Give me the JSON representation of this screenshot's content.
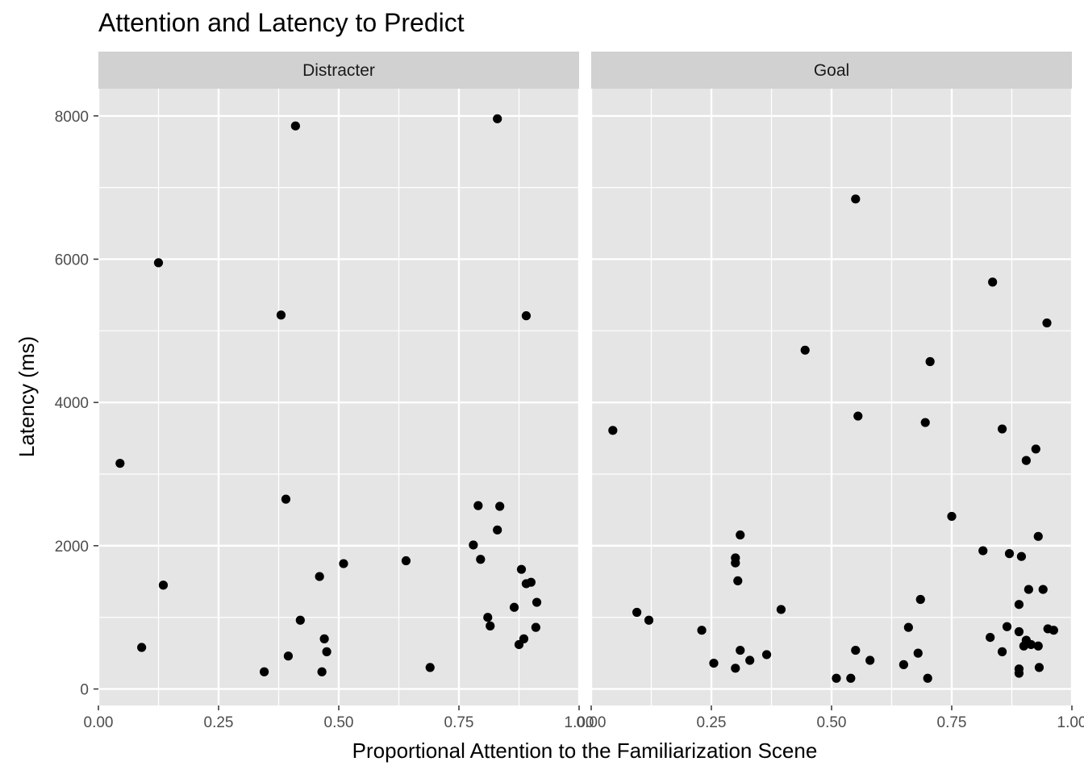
{
  "chart_data": {
    "type": "scatter",
    "title": "Attention and Latency to Predict",
    "xlabel": "Proportional Attention to the Familiarization Scene",
    "ylabel": "Latency (ms)",
    "xlim": [
      0,
      1
    ],
    "ylim": [
      -230,
      8380
    ],
    "x_ticks": [
      0,
      0.25,
      0.5,
      0.75,
      1
    ],
    "x_tick_labels": [
      "0.00",
      "0.25",
      "0.50",
      "0.75",
      "1.00"
    ],
    "y_ticks": [
      0,
      2000,
      4000,
      6000,
      8000
    ],
    "y_tick_labels": [
      "0",
      "2000",
      "4000",
      "6000",
      "8000"
    ],
    "grid": true,
    "point_color": "#000000",
    "panel_background": "#e5e5e5",
    "strip_background": "#d1d1d1",
    "facets": [
      {
        "name": "Distracter",
        "points": [
          {
            "x": 0.045,
            "y": 3150
          },
          {
            "x": 0.09,
            "y": 580
          },
          {
            "x": 0.125,
            "y": 5950
          },
          {
            "x": 0.135,
            "y": 1450
          },
          {
            "x": 0.345,
            "y": 240
          },
          {
            "x": 0.38,
            "y": 5220
          },
          {
            "x": 0.39,
            "y": 2650
          },
          {
            "x": 0.395,
            "y": 460
          },
          {
            "x": 0.41,
            "y": 7860
          },
          {
            "x": 0.42,
            "y": 960
          },
          {
            "x": 0.46,
            "y": 1570
          },
          {
            "x": 0.465,
            "y": 240
          },
          {
            "x": 0.47,
            "y": 700
          },
          {
            "x": 0.475,
            "y": 520
          },
          {
            "x": 0.51,
            "y": 1750
          },
          {
            "x": 0.64,
            "y": 1790
          },
          {
            "x": 0.69,
            "y": 300
          },
          {
            "x": 0.78,
            "y": 2010
          },
          {
            "x": 0.79,
            "y": 2560
          },
          {
            "x": 0.795,
            "y": 1810
          },
          {
            "x": 0.81,
            "y": 1000
          },
          {
            "x": 0.815,
            "y": 880
          },
          {
            "x": 0.83,
            "y": 7960
          },
          {
            "x": 0.83,
            "y": 2220
          },
          {
            "x": 0.835,
            "y": 2550
          },
          {
            "x": 0.865,
            "y": 1140
          },
          {
            "x": 0.875,
            "y": 620
          },
          {
            "x": 0.88,
            "y": 1670
          },
          {
            "x": 0.885,
            "y": 700
          },
          {
            "x": 0.89,
            "y": 5210
          },
          {
            "x": 0.89,
            "y": 1470
          },
          {
            "x": 0.9,
            "y": 1490
          },
          {
            "x": 0.91,
            "y": 860
          },
          {
            "x": 0.912,
            "y": 1210
          }
        ]
      },
      {
        "name": "Goal",
        "points": [
          {
            "x": 0.045,
            "y": 3610
          },
          {
            "x": 0.095,
            "y": 1070
          },
          {
            "x": 0.12,
            "y": 960
          },
          {
            "x": 0.23,
            "y": 820
          },
          {
            "x": 0.255,
            "y": 360
          },
          {
            "x": 0.3,
            "y": 290
          },
          {
            "x": 0.3,
            "y": 1830
          },
          {
            "x": 0.3,
            "y": 1760
          },
          {
            "x": 0.305,
            "y": 1510
          },
          {
            "x": 0.31,
            "y": 2150
          },
          {
            "x": 0.31,
            "y": 540
          },
          {
            "x": 0.33,
            "y": 400
          },
          {
            "x": 0.365,
            "y": 480
          },
          {
            "x": 0.395,
            "y": 1110
          },
          {
            "x": 0.445,
            "y": 4730
          },
          {
            "x": 0.51,
            "y": 150
          },
          {
            "x": 0.54,
            "y": 150
          },
          {
            "x": 0.55,
            "y": 6840
          },
          {
            "x": 0.55,
            "y": 540
          },
          {
            "x": 0.555,
            "y": 3810
          },
          {
            "x": 0.58,
            "y": 400
          },
          {
            "x": 0.65,
            "y": 340
          },
          {
            "x": 0.66,
            "y": 860
          },
          {
            "x": 0.68,
            "y": 500
          },
          {
            "x": 0.685,
            "y": 1250
          },
          {
            "x": 0.695,
            "y": 3720
          },
          {
            "x": 0.7,
            "y": 150
          },
          {
            "x": 0.705,
            "y": 4570
          },
          {
            "x": 0.75,
            "y": 2410
          },
          {
            "x": 0.815,
            "y": 1930
          },
          {
            "x": 0.83,
            "y": 720
          },
          {
            "x": 0.835,
            "y": 5680
          },
          {
            "x": 0.855,
            "y": 3630
          },
          {
            "x": 0.855,
            "y": 520
          },
          {
            "x": 0.865,
            "y": 870
          },
          {
            "x": 0.87,
            "y": 1890
          },
          {
            "x": 0.89,
            "y": 1180
          },
          {
            "x": 0.89,
            "y": 800
          },
          {
            "x": 0.89,
            "y": 280
          },
          {
            "x": 0.89,
            "y": 220
          },
          {
            "x": 0.895,
            "y": 1850
          },
          {
            "x": 0.9,
            "y": 600
          },
          {
            "x": 0.905,
            "y": 3190
          },
          {
            "x": 0.905,
            "y": 680
          },
          {
            "x": 0.91,
            "y": 1390
          },
          {
            "x": 0.915,
            "y": 620
          },
          {
            "x": 0.925,
            "y": 3350
          },
          {
            "x": 0.93,
            "y": 2130
          },
          {
            "x": 0.93,
            "y": 600
          },
          {
            "x": 0.932,
            "y": 300
          },
          {
            "x": 0.94,
            "y": 1390
          },
          {
            "x": 0.948,
            "y": 5110
          },
          {
            "x": 0.95,
            "y": 840
          },
          {
            "x": 0.962,
            "y": 820
          }
        ]
      }
    ]
  }
}
